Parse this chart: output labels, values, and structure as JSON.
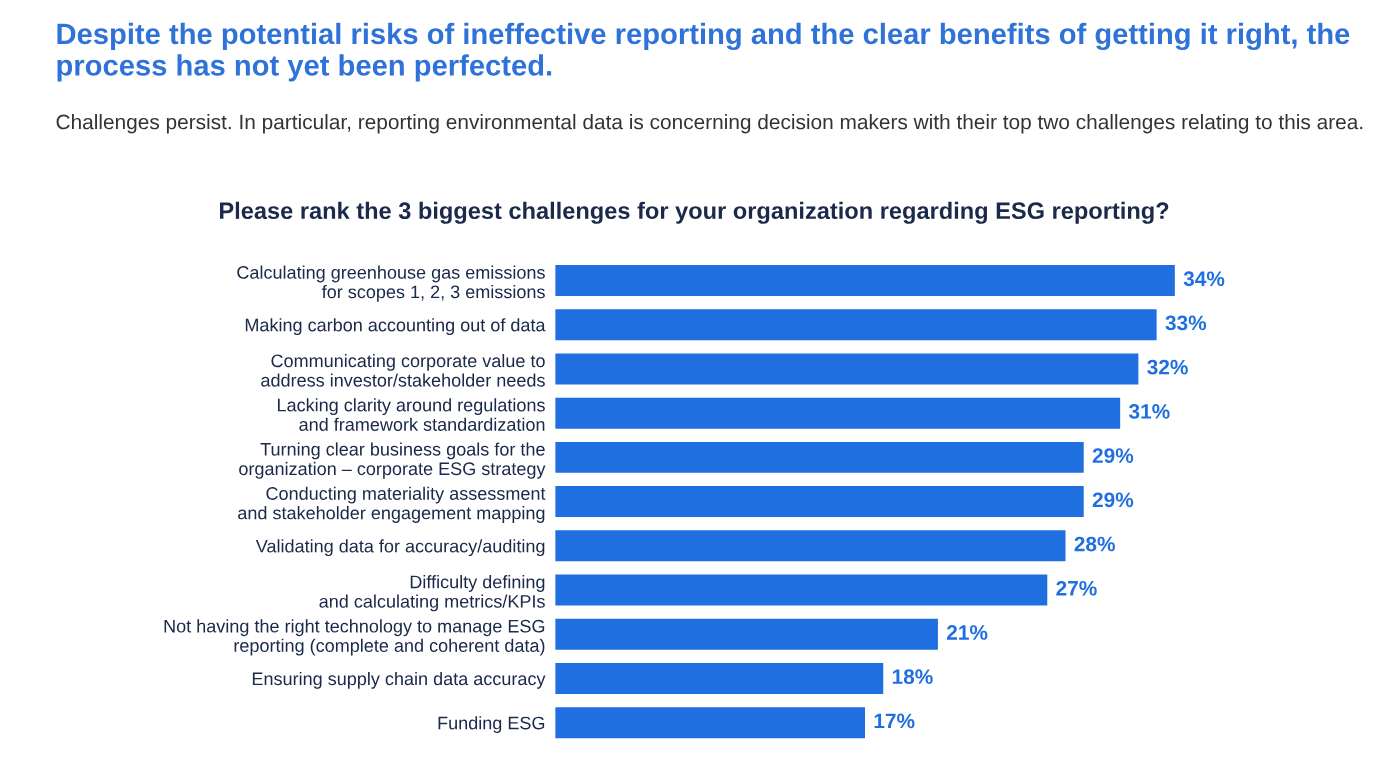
{
  "chart_data": {
    "type": "bar",
    "orientation": "horizontal",
    "title": "Despite the potential risks of ineffective reporting and the clear benefits of getting it right, the process has not yet been perfected.",
    "subtitle": "Challenges persist. In particular, reporting environmental data is concerning decision makers with their top two challenges relating to this area.",
    "annotations": [
      "Please rank the 3 biggest challenges for your organization regarding ESG reporting?"
    ],
    "categories": [
      "Calculating greenhouse gas emissions\nfor scopes 1, 2, 3 emissions",
      "Making carbon accounting out of data",
      "Communicating corporate value to\naddress investor/stakeholder needs",
      "Lacking clarity around regulations\nand framework standardization",
      "Turning clear business goals for the\norganization – corporate ESG strategy",
      "Conducting materiality assessment\nand stakeholder engagement mapping",
      "Validating data for accuracy/auditing",
      "Difficulty defining\nand calculating metrics/KPIs",
      "Not having the right technology to manage ESG\nreporting (complete and coherent data)",
      "Ensuring supply chain data accuracy",
      "Funding ESG"
    ],
    "values": [
      34,
      33,
      32,
      31,
      29,
      29,
      28,
      27,
      21,
      18,
      17
    ],
    "value_labels": [
      "34%",
      "33%",
      "32%",
      "31%",
      "29%",
      "29%",
      "28%",
      "27%",
      "21%",
      "18%",
      "17%"
    ],
    "color": "#1f6fe0",
    "grid": false,
    "legend": false
  }
}
